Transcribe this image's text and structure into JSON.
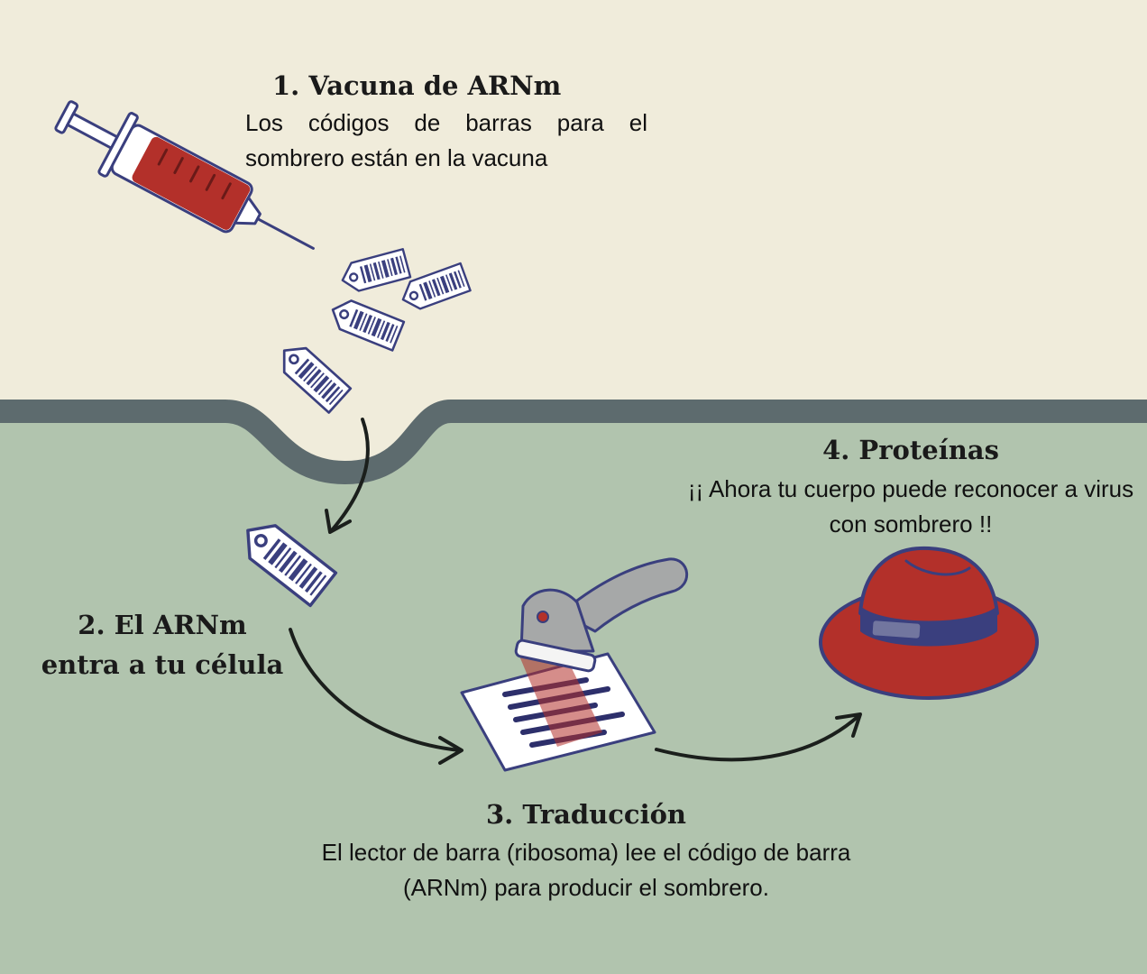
{
  "colors": {
    "outside_background": "#f0ecdb",
    "cell_background": "#b1c4ae",
    "membrane": "#5d6b6e",
    "outline_navy": "#3a3f7e",
    "accent_red": "#b3302a",
    "arrow": "#1b1f1c"
  },
  "steps": {
    "vaccine": {
      "title": "1. Vacuna de ARNm",
      "body": "Los códigos de barras para el sombrero están en la vacuna",
      "icon": "syringe-icon"
    },
    "cell_entry": {
      "title": "2. El ARNm entra a tu célula",
      "icon": "barcode-tag-icon"
    },
    "translation": {
      "title": "3. Traducción",
      "body": "El lector de barra (ribosoma) lee el código de barra (ARNm) para producir el sombrero.",
      "icon": "barcode-scanner-icon"
    },
    "proteins": {
      "title": "4. Proteínas",
      "body": "¡¡ Ahora tu cuerpo puede reconocer a virus con sombrero !!",
      "icon": "red-hat-icon"
    }
  }
}
